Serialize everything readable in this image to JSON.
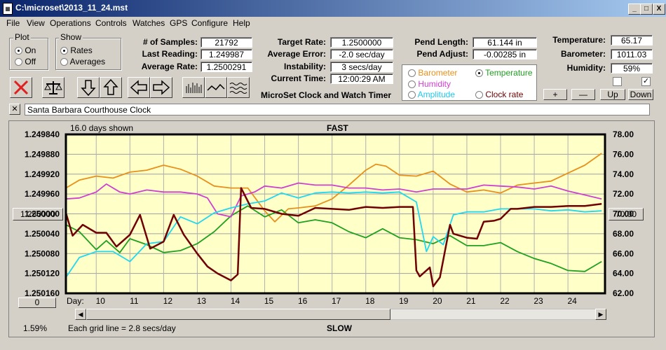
{
  "window": {
    "title": "C:\\microset\\2013_11_24.mst",
    "min": "_",
    "max": "□",
    "close": "X"
  },
  "menu": [
    "File",
    "View",
    "Operations",
    "Controls",
    "Watches",
    "GPS",
    "Configure",
    "Help"
  ],
  "plot": {
    "label": "Plot",
    "options": [
      "On",
      "Off"
    ],
    "selected": "On"
  },
  "show": {
    "label": "Show",
    "options": [
      "Rates",
      "Averages"
    ],
    "selected": "Rates"
  },
  "stats": {
    "samples_label": "# of Samples:",
    "samples": "21792",
    "last_label": "Last Reading:",
    "last": "1.249987",
    "avg_label": "Average Rate:",
    "avg": "1.2500291",
    "target_label": "Target Rate:",
    "target": "1.2500000",
    "avgerr_label": "Average Error:",
    "avgerr": "-2.0 sec/day",
    "instab_label": "Instability:",
    "instab": "3 secs/day",
    "time_label": "Current Time:",
    "time": "12:00:29 AM",
    "pendlen_label": "Pend Length:",
    "pendlen": "61.144 in",
    "pendadj_label": "Pend Adjust:",
    "pendadj": "-0.00285 in",
    "temp_label": "Temperature:",
    "temp": "65.17",
    "baro_label": "Barometer:",
    "baro": "1011.03",
    "hum_label": "Humidity:",
    "hum": "59%"
  },
  "app_name": "MicroSet Clock and Watch Timer",
  "channels": {
    "barometer": {
      "label": "Barometer",
      "color": "#e8901c"
    },
    "temperature": {
      "label": "Temperature",
      "color": "#20a020"
    },
    "humidity": {
      "label": "Humidity",
      "color": "#d040d0"
    },
    "amplitude": {
      "label": "Amplitude",
      "color": "#20d8f0"
    },
    "clockrate": {
      "label": "Clock rate",
      "color": "#700000"
    },
    "selected": "Temperature"
  },
  "small_buttons": {
    "plus": "+",
    "minus": "—",
    "up": "Up",
    "down": "Down"
  },
  "toolbar_icons": [
    "close-x-icon",
    "balance-scale-icon",
    "arrow-down-icon",
    "arrow-up-icon",
    "arrow-left-icon",
    "arrow-right-icon",
    "bar-plot-icon",
    "line-plot-icon",
    "wave-plot-icon"
  ],
  "clock_name": "Santa Barbara Courthouse Clock",
  "chart": {
    "days_shown": "16.0 days shown",
    "fast": "FAST",
    "slow": "SLOW",
    "grid_note": "Each grid line = 2.8 secs/day",
    "percent": "1.59%",
    "day_label": "Day:",
    "left_button": "1.250000",
    "right_button": "70.00",
    "zero_button": "0",
    "scroll_left": "◀",
    "scroll_right": "▶"
  },
  "chart_data": {
    "type": "line",
    "title": "",
    "left_axis_ticks": [
      "1.249840",
      "1.249880",
      "1.249920",
      "1.249960",
      "1.250000",
      "1.250040",
      "1.250080",
      "1.250120",
      "1.250160"
    ],
    "right_axis_ticks": [
      "78.00",
      "76.00",
      "74.00",
      "72.00",
      "70.00",
      "68.00",
      "66.00",
      "64.00",
      "62.00"
    ],
    "x_ticks": [
      "10",
      "11",
      "12",
      "13",
      "14",
      "15",
      "16",
      "17",
      "18",
      "19",
      "20",
      "21",
      "22",
      "23",
      "24"
    ],
    "xlim": [
      9.1,
      25.1
    ],
    "right_ylim": [
      62,
      78
    ],
    "series": [
      {
        "key": "barometer",
        "color": "#e8901c",
        "x": [
          9.1,
          9.5,
          10,
          10.5,
          11,
          11.5,
          12,
          12.5,
          13,
          13.5,
          14,
          14.5,
          15,
          15.3,
          15.7,
          16,
          16.5,
          17,
          17.5,
          18,
          18.3,
          18.6,
          19,
          19.5,
          20,
          20.5,
          21,
          21.5,
          22,
          22.5,
          23,
          23.5,
          24,
          24.5,
          25
        ],
        "y": [
          72.6,
          73.4,
          73.8,
          73.6,
          74.2,
          74.4,
          74.9,
          74.5,
          73.8,
          72.8,
          72.6,
          72.6,
          70.3,
          69.2,
          70.5,
          70.6,
          70.8,
          71.5,
          72.9,
          74.4,
          75.0,
          74.8,
          73.9,
          73.8,
          74.3,
          73.0,
          72.2,
          72.4,
          72.1,
          72.9,
          73.1,
          73.3,
          74.1,
          74.9,
          76.1
        ]
      },
      {
        "key": "temperature",
        "color": "#20a020",
        "x": [
          9.1,
          9.5,
          10,
          10.3,
          10.7,
          11,
          11.5,
          12,
          12.5,
          13,
          13.5,
          14,
          14.5,
          15,
          15.5,
          16,
          16.5,
          17,
          17.5,
          18,
          18.5,
          19,
          19.5,
          20,
          20.5,
          21,
          21.5,
          22,
          22.5,
          23,
          23.5,
          24,
          24.5,
          25
        ],
        "y": [
          68.9,
          68.2,
          66.4,
          67.3,
          66.1,
          67.5,
          66.9,
          66.1,
          66.3,
          67.0,
          68.2,
          69.8,
          70.8,
          69.7,
          70.4,
          69.1,
          69.4,
          69.1,
          68.2,
          67.6,
          68.5,
          67.6,
          67.4,
          67.0,
          67.8,
          66.8,
          66.8,
          67.1,
          66.2,
          65.5,
          65.0,
          64.3,
          64.2,
          65.2
        ]
      },
      {
        "key": "humidity",
        "color": "#d040d0",
        "x": [
          9.1,
          9.5,
          10,
          10.3,
          10.7,
          11,
          11.5,
          12,
          12.5,
          13,
          13.3,
          13.6,
          14,
          14.3,
          14.7,
          15,
          15.5,
          16,
          16.5,
          17,
          17.5,
          18,
          18.5,
          19,
          19.5,
          20,
          20.5,
          21,
          21.5,
          22,
          22.5,
          23,
          23.5,
          24,
          24.5,
          25
        ],
        "y": [
          71.5,
          71.6,
          72.2,
          73.0,
          72.2,
          72.0,
          72.4,
          72.2,
          72.2,
          72.0,
          71.6,
          70.0,
          69.7,
          71.8,
          72.2,
          72.8,
          72.6,
          73.1,
          72.9,
          72.9,
          72.6,
          72.6,
          72.4,
          72.5,
          72.2,
          72.5,
          72.5,
          72.5,
          72.9,
          72.8,
          72.7,
          72.5,
          72.8,
          72.3,
          71.9,
          71.5
        ]
      },
      {
        "key": "amplitude",
        "color": "#20d8f0",
        "x": [
          9.1,
          9.5,
          10,
          10.5,
          11,
          11.5,
          12,
          12.5,
          13,
          13.5,
          14,
          14.5,
          15,
          15.5,
          16,
          16.5,
          17,
          17.5,
          18,
          18.5,
          19,
          19.5,
          19.8,
          20,
          20.3,
          20.6,
          21,
          21.5,
          22,
          22.5,
          23,
          23.5,
          24,
          24.5,
          25
        ],
        "y": [
          63.6,
          65.6,
          66.2,
          66.2,
          65.2,
          67.0,
          67.2,
          69.7,
          69.0,
          70.1,
          70.6,
          71.0,
          71.3,
          72.1,
          71.6,
          72.1,
          72.2,
          72.1,
          72.2,
          72.1,
          72.2,
          71.2,
          66.2,
          67.7,
          66.9,
          69.9,
          70.2,
          70.2,
          70.5,
          70.5,
          70.5,
          70.3,
          70.4,
          70.2,
          70.3
        ]
      },
      {
        "key": "clockrate",
        "color": "#700000",
        "x": [
          9.1,
          9.3,
          9.6,
          10,
          10.3,
          10.6,
          11,
          11.3,
          11.6,
          12,
          12.3,
          12.6,
          13,
          13.3,
          13.6,
          14,
          14.2,
          14.3,
          14.45,
          14.6,
          15,
          15.5,
          16,
          16.5,
          17,
          17.5,
          18,
          18.5,
          19,
          19.4,
          19.5,
          19.6,
          19.9,
          20,
          20.2,
          20.5,
          20.6,
          21,
          21.3,
          21.5,
          21.8,
          22,
          22.3,
          22.5,
          23,
          23.5,
          24,
          24.5,
          25
        ],
        "y": [
          70.1,
          67.8,
          68.9,
          68.1,
          68.1,
          66.7,
          67.9,
          69.9,
          66.5,
          67.2,
          69.9,
          67.9,
          66.0,
          64.7,
          64.0,
          63.3,
          63.9,
          72.6,
          71.6,
          70.6,
          70.5,
          70.0,
          69.8,
          70.6,
          70.5,
          70.4,
          70.7,
          70.6,
          70.7,
          70.7,
          64.3,
          63.7,
          64.6,
          62.7,
          63.6,
          68.9,
          68.0,
          67.6,
          67.5,
          69.2,
          69.3,
          69.5,
          70.5,
          70.5,
          70.7,
          70.7,
          70.8,
          70.8,
          71.0
        ]
      }
    ]
  }
}
